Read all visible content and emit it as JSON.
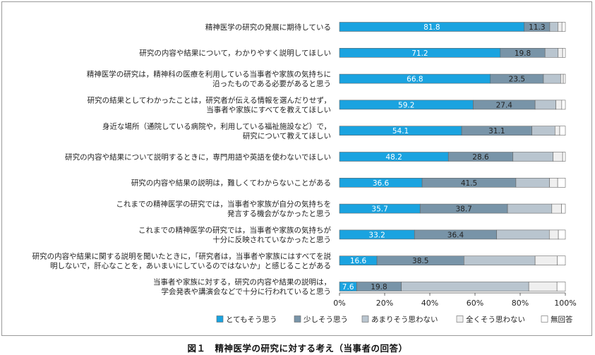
{
  "caption": "図１　精神医学の研究に対する考え（当事者の回答）",
  "chart_data": {
    "type": "bar",
    "orientation": "horizontal",
    "stacked": true,
    "categories": [
      [
        "精神医学の研究の発展に期待している"
      ],
      [
        "研究の内容や結果について，わかりやすく説明してほしい"
      ],
      [
        "精神医学の研究は，精神科の医療を利用している当事者や家族の気持ちに",
        "沿ったものである必要があると思う"
      ],
      [
        "研究の結果としてわかったことは，研究者が伝える情報を選んだりせず，",
        "当事者や家族にすべてを教えてほしい"
      ],
      [
        "身近な場所（通院している病院や，利用している福祉施設など）で，",
        "研究について教えてほしい"
      ],
      [
        "研究の内容や結果について説明するときに，専門用語や英語を使わないでほしい"
      ],
      [
        "研究の内容や結果の説明は，難しくてわからないことがある"
      ],
      [
        "これまでの精神医学の研究では，当事者や家族が自分の気持ちを",
        "発言する機会がなかったと思う"
      ],
      [
        "これまでの精神医学の研究では，当事者や家族の気持ちが",
        "十分に反映されていなかったと思う"
      ],
      [
        "研究の内容や結果に関する説明を聞いたときに，「研究者は，当事者や家族にはすべてを説",
        "明しないで，肝心なことを，あいまいにしているのではないか」と感じることがある"
      ],
      [
        "当事者や家族に対する，研究の内容や結果の説明は，",
        "学会発表や講演会などで十分に行われていると思う"
      ]
    ],
    "series": [
      {
        "name": "とてもそう思う",
        "color": "#1aa3e0",
        "values": [
          81.8,
          71.2,
          66.8,
          59.2,
          54.1,
          48.2,
          36.6,
          35.7,
          33.2,
          16.6,
          7.6
        ]
      },
      {
        "name": "少しそう思う",
        "color": "#7894a8",
        "values": [
          11.3,
          19.8,
          23.5,
          27.4,
          31.1,
          28.6,
          41.5,
          38.7,
          36.4,
          38.5,
          19.8
        ]
      },
      {
        "name": "あまりそう思わない",
        "color": "#b9c5cf",
        "values": [
          3.6,
          5.8,
          7.6,
          9.2,
          10.2,
          17.8,
          14.9,
          19.6,
          23.3,
          31.5,
          56.4
        ]
      },
      {
        "name": "全くそう思わない",
        "color": "#efefef",
        "values": [
          1.8,
          2.0,
          1.2,
          2.6,
          2.1,
          4.2,
          3.6,
          4.3,
          4.0,
          9.8,
          12.5
        ]
      },
      {
        "name": "無回答",
        "color": "#ffffff",
        "values": [
          1.5,
          1.2,
          0.9,
          1.6,
          2.5,
          1.2,
          3.4,
          1.7,
          3.1,
          3.6,
          3.7
        ]
      }
    ],
    "labeled_series": 2,
    "xlim": [
      0,
      100
    ],
    "xticks": [
      "0%",
      "20%",
      "40%",
      "60%",
      "80%",
      "100%"
    ],
    "grid": false,
    "legend_position": "bottom"
  }
}
